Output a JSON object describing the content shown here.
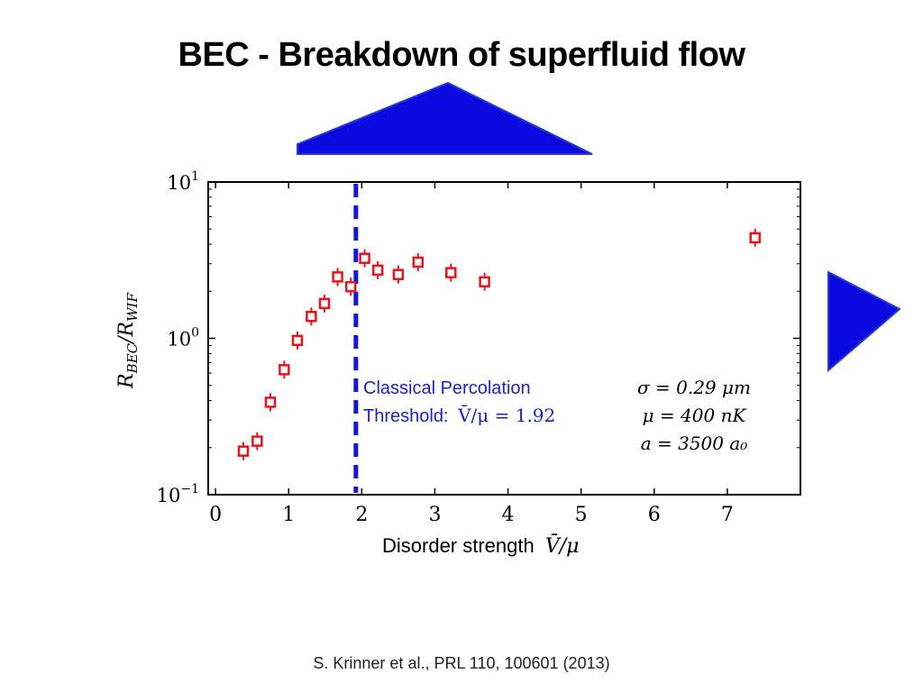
{
  "slide": {
    "title": "BEC - Breakdown of superfluid flow",
    "citation": "S. Krinner et al., PRL 110, 100601 (2013)"
  },
  "colors": {
    "marker": "#e8141c",
    "threshold_line": "#1414dd",
    "annotation_text": "#1b22c9",
    "arrow_fill": "#0a0ae0",
    "arrow_stroke": "#2a3ad0"
  },
  "decorations": [
    "up-triangle-arrow",
    "right-triangle-arrow"
  ],
  "chart_data": {
    "type": "scatter",
    "xlabel_prefix": "Disorder strength",
    "xlabel_math": "V̄/μ",
    "ylabel": "R_BEC/R_WIF",
    "ylabel_base": "R",
    "ylabel_num_sub": "BEC",
    "ylabel_den_sub": "WIF",
    "xlim": [
      -0.1,
      8.0
    ],
    "ylim": [
      0.1,
      10
    ],
    "yscale": "log",
    "x_ticks": [
      0,
      1,
      2,
      3,
      4,
      5,
      6,
      7
    ],
    "y_ticks": [
      {
        "value": 0.1,
        "base": "10",
        "exp": "−1"
      },
      {
        "value": 1,
        "base": "10",
        "exp": "0"
      },
      {
        "value": 10,
        "base": "10",
        "exp": "1"
      }
    ],
    "grid": false,
    "points": [
      {
        "x": 0.38,
        "y": 0.19
      },
      {
        "x": 0.57,
        "y": 0.22
      },
      {
        "x": 0.75,
        "y": 0.39
      },
      {
        "x": 0.94,
        "y": 0.63
      },
      {
        "x": 1.12,
        "y": 0.97
      },
      {
        "x": 1.31,
        "y": 1.38
      },
      {
        "x": 1.49,
        "y": 1.67
      },
      {
        "x": 1.67,
        "y": 2.47
      },
      {
        "x": 1.85,
        "y": 2.14
      },
      {
        "x": 2.04,
        "y": 3.25
      },
      {
        "x": 2.22,
        "y": 2.73
      },
      {
        "x": 2.5,
        "y": 2.56
      },
      {
        "x": 2.77,
        "y": 3.07
      },
      {
        "x": 3.22,
        "y": 2.63
      },
      {
        "x": 3.68,
        "y": 2.3
      },
      {
        "x": 7.38,
        "y": 4.4
      }
    ],
    "threshold": {
      "x": 1.92,
      "label_line1": "Classical Percolation",
      "label_line2_prefix": "Threshold:",
      "label_line2_math": "V̄/μ = 1.92"
    },
    "parameters": [
      "σ = 0.29 μm",
      "μ = 400 nK",
      "a = 3500 a₀"
    ]
  }
}
